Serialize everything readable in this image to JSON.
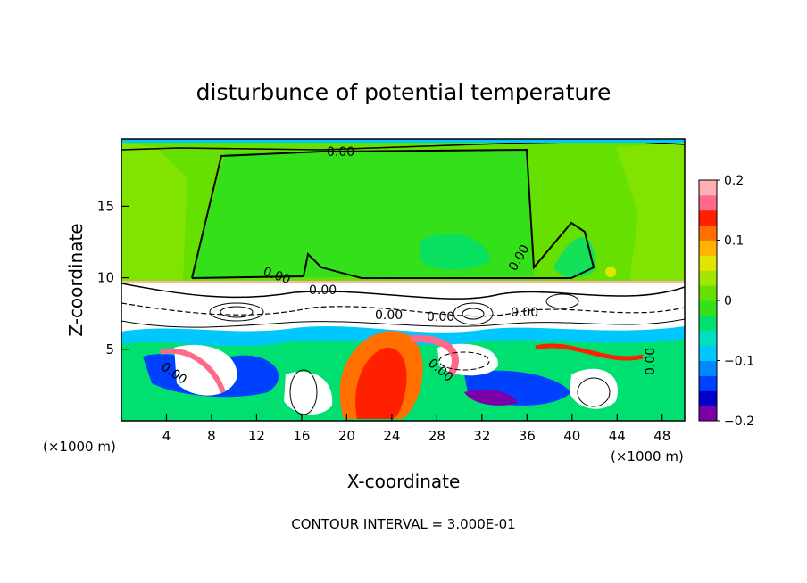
{
  "chart_data": {
    "type": "heatmap",
    "title": "disturbunce of potential temperature",
    "xlabel": "X-coordinate",
    "ylabel": "Z-coordinate",
    "x_unit_left": "(×1000 m)",
    "x_unit_right": "(×1000 m)",
    "xlim": [
      0,
      50
    ],
    "ylim": [
      0,
      19.7
    ],
    "xticks": [
      4,
      8,
      12,
      16,
      20,
      24,
      28,
      32,
      36,
      40,
      44,
      48
    ],
    "yticks": [
      5,
      10,
      15
    ],
    "footer": "CONTOUR INTERVAL = 3.000E-01",
    "contour_labels": [
      "0.00",
      "0.00",
      "0.00",
      "0.00",
      "0.00",
      "0.00",
      "0.00",
      "0.00",
      "0.00",
      "0.00"
    ],
    "colorbar": {
      "range": [
        -0.2,
        0.2
      ],
      "tick_values": [
        0.2,
        0.1,
        0,
        -0.1,
        -0.2
      ],
      "tick_labels": [
        "0.2",
        "0.1",
        "0",
        "−0.1",
        "−0.2"
      ],
      "colors": [
        "#7a00a8",
        "#0000c8",
        "#0040ff",
        "#0088ff",
        "#00c8ff",
        "#00e0c0",
        "#00e070",
        "#33e01a",
        "#66e000",
        "#a0e600",
        "#e0e600",
        "#ffb400",
        "#ff7000",
        "#ff2000",
        "#ff6a8a",
        "#ffb0b0"
      ]
    },
    "regions": {
      "upper_value": 0.02,
      "upper_from_z": 9.9,
      "inner_value": 0.0
    }
  }
}
